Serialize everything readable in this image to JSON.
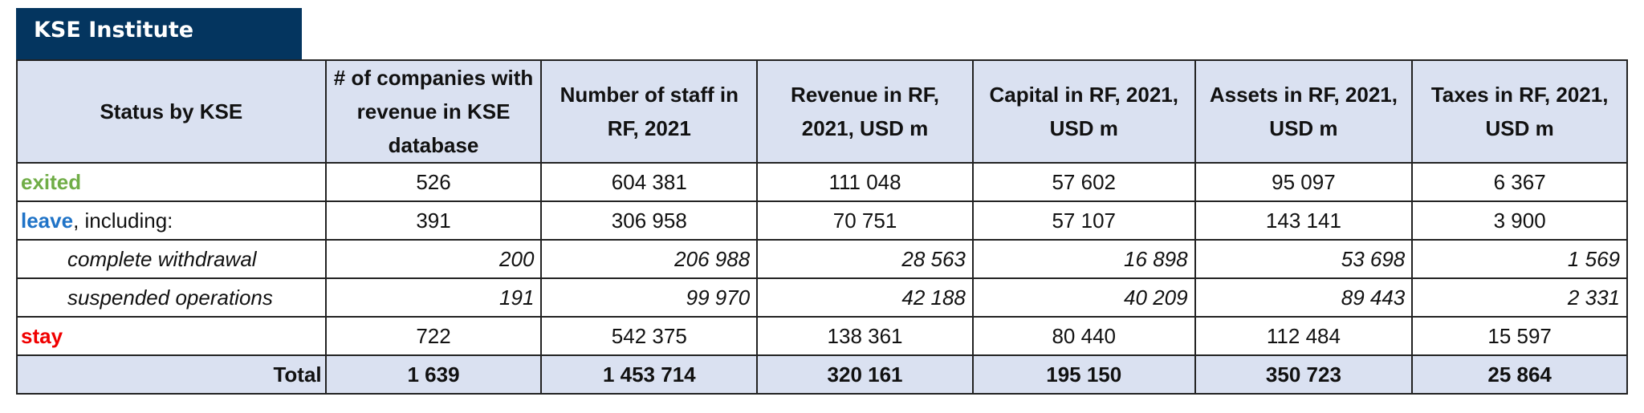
{
  "brand": "KSE Institute",
  "colors": {
    "header_bg": "#dae1f1",
    "brand_bg": "#04355f",
    "exited": "#70ad47",
    "leave": "#1f73c7",
    "stay": "#f00000"
  },
  "headers": [
    "Status by KSE",
    "# of companies with revenue in KSE database",
    "Number of staff in RF, 2021",
    "Revenue in RF, 2021, USD m",
    "Capital in RF, 2021, USD m",
    "Assets in RF, 2021, USD m",
    "Taxes in RF, 2021, USD m"
  ],
  "rows": [
    {
      "label": "exited",
      "suffix": "",
      "values": [
        "526",
        "604 381",
        "111 048",
        "57 602",
        "95 097",
        "6 367"
      ]
    },
    {
      "label": "leave",
      "suffix": ", including:",
      "values": [
        "391",
        "306 958",
        "70 751",
        "57 107",
        "143 141",
        "3 900"
      ]
    },
    {
      "label": "complete withdrawal",
      "values": [
        "200",
        "206 988",
        "28 563",
        "16 898",
        "53 698",
        "1 569"
      ]
    },
    {
      "label": "suspended operations",
      "values": [
        "191",
        "99 970",
        "42 188",
        "40 209",
        "89 443",
        "2 331"
      ]
    },
    {
      "label": "stay",
      "suffix": "",
      "values": [
        "722",
        "542 375",
        "138 361",
        "80 440",
        "112 484",
        "15 597"
      ]
    },
    {
      "label": "Total",
      "values": [
        "1 639",
        "1 453 714",
        "320 161",
        "195 150",
        "350 723",
        "25 864"
      ]
    }
  ]
}
